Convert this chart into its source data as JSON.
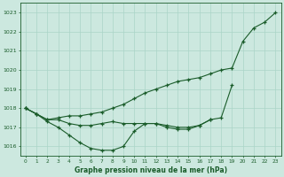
{
  "title": "Graphe pression niveau de la mer (hPa)",
  "background_color": "#cce8df",
  "grid_color": "#aad4c8",
  "line_color": "#1a5c2a",
  "hours": [
    0,
    1,
    2,
    3,
    4,
    5,
    6,
    7,
    8,
    9,
    10,
    11,
    12,
    13,
    14,
    15,
    16,
    17,
    18,
    19,
    20,
    21,
    22,
    23
  ],
  "line_top": [
    1018.0,
    1017.7,
    1017.4,
    1017.5,
    1017.6,
    1017.6,
    1017.7,
    1017.8,
    1018.0,
    1018.2,
    1018.5,
    1018.8,
    1019.0,
    1019.2,
    1019.4,
    1019.5,
    1019.6,
    1019.8,
    1020.0,
    1020.1,
    1021.5,
    1022.2,
    1022.5,
    1023.0
  ],
  "line_mid": [
    1018.0,
    1017.7,
    1017.4,
    1017.4,
    1017.2,
    1017.1,
    1017.1,
    1017.2,
    1017.3,
    1017.2,
    1017.2,
    1017.2,
    1017.2,
    1017.1,
    1017.0,
    1017.0,
    1017.1,
    1017.4,
    1017.5,
    1019.2,
    null,
    null,
    null,
    null
  ],
  "line_bot": [
    1018.0,
    1017.7,
    1017.3,
    1017.0,
    1016.6,
    1016.2,
    1015.9,
    1015.8,
    1015.8,
    1016.0,
    1016.8,
    1017.2,
    1017.2,
    1017.0,
    1016.9,
    1016.9,
    1017.1,
    1017.4,
    null,
    null,
    null,
    null,
    null,
    null
  ],
  "ylim": [
    1015.5,
    1023.5
  ],
  "yticks": [
    1016,
    1017,
    1018,
    1019,
    1020,
    1021,
    1022,
    1023
  ],
  "xlim": [
    -0.5,
    23.5
  ]
}
